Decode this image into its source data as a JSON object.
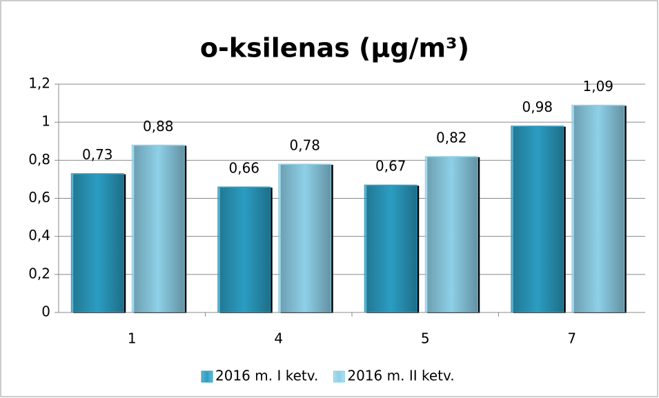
{
  "chart_data": {
    "type": "bar",
    "title": "o-ksilenas (µg/m³)",
    "categories": [
      "1",
      "4",
      "5",
      "7"
    ],
    "series": [
      {
        "name": "2016 m. I ketv.",
        "color": "#2b9dc2",
        "values": [
          0.73,
          0.66,
          0.67,
          0.98
        ],
        "value_labels": [
          "0,73",
          "0,66",
          "0,67",
          "0,98"
        ]
      },
      {
        "name": "2016 m. II ketv.",
        "color": "#8ed0e8",
        "values": [
          0.88,
          0.78,
          0.82,
          1.09
        ],
        "value_labels": [
          "0,88",
          "0,78",
          "0,82",
          "1,09"
        ]
      }
    ],
    "ylim": [
      0,
      1.2
    ],
    "yticks": [
      0,
      {
        "value": 0.2,
        "label": "0,2"
      },
      {
        "value": 0.4,
        "label": "0,4"
      },
      {
        "value": 0.6,
        "label": "0,6"
      },
      {
        "value": 0.8,
        "label": "0,8"
      },
      1,
      {
        "value": 1.2,
        "label": "1,2"
      }
    ],
    "grid": true,
    "legend": "bottom"
  }
}
